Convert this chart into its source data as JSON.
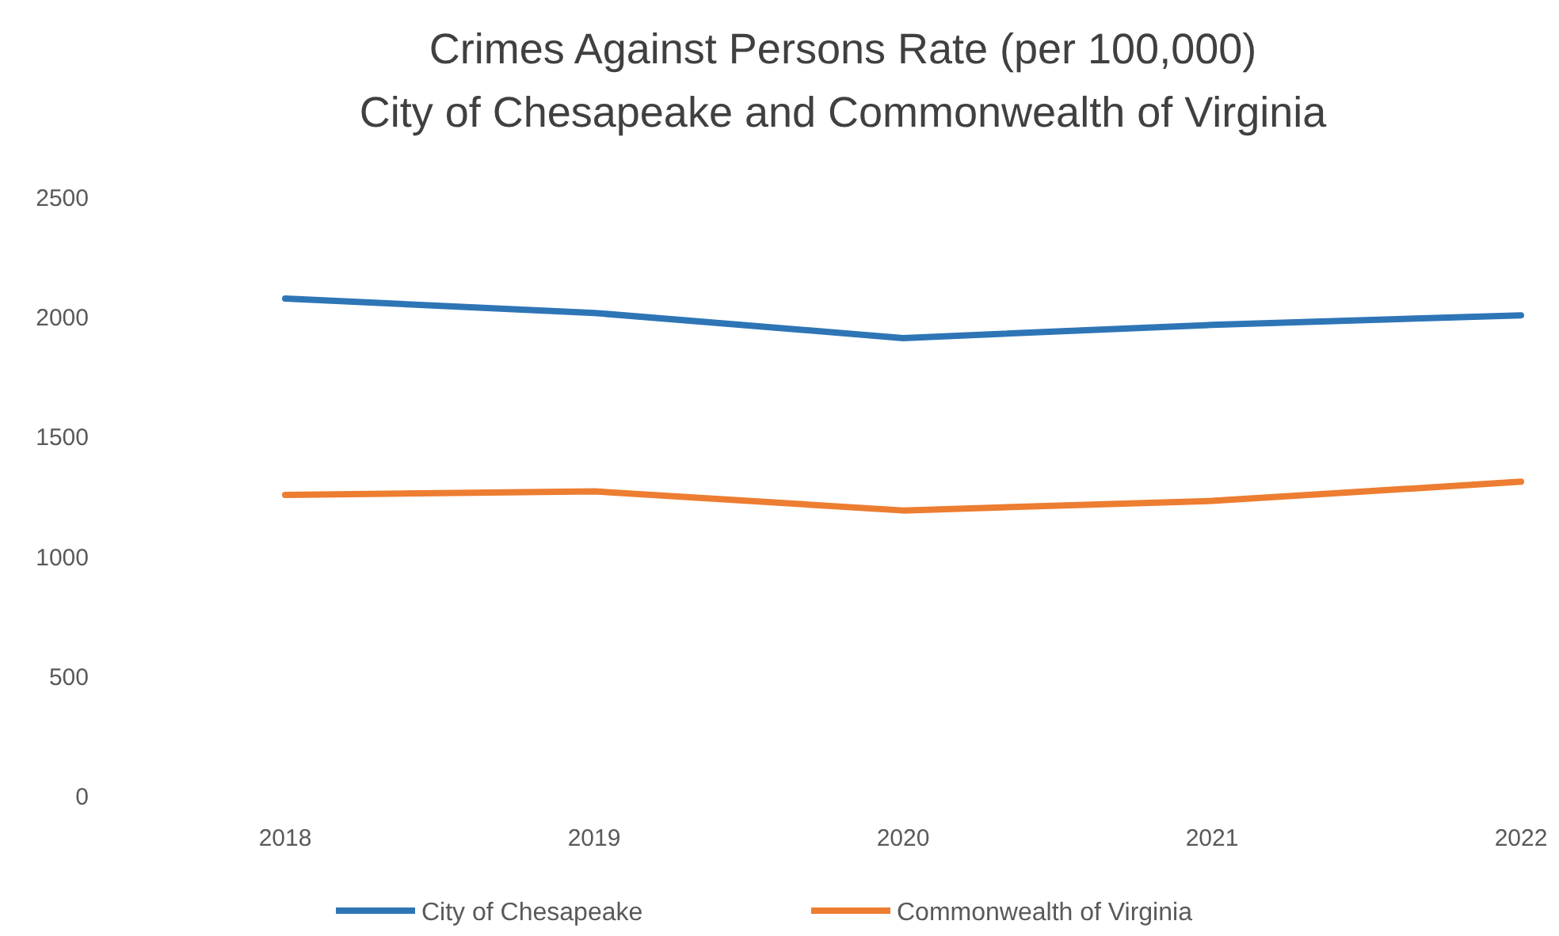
{
  "chart_data": {
    "type": "line",
    "title": "Crimes Against Persons Rate (per 100,000)",
    "subtitle": "City of Chesapeake and Commonwealth of Virginia",
    "categories": [
      "2018",
      "2019",
      "2020",
      "2021",
      "2022"
    ],
    "series": [
      {
        "name": "City of Chesapeake",
        "color": "#2e75b6",
        "values": [
          2080,
          2020,
          1915,
          1970,
          2010
        ]
      },
      {
        "name": "Commonwealth of Virginia",
        "color": "#ed7d31",
        "values": [
          1260,
          1275,
          1195,
          1235,
          1315
        ]
      }
    ],
    "ylim": [
      0,
      2500
    ],
    "yticks": [
      0,
      500,
      1000,
      1500,
      2000,
      2500
    ],
    "grid": false,
    "legend": "bottom",
    "marker": "none",
    "line_style": "solid"
  }
}
